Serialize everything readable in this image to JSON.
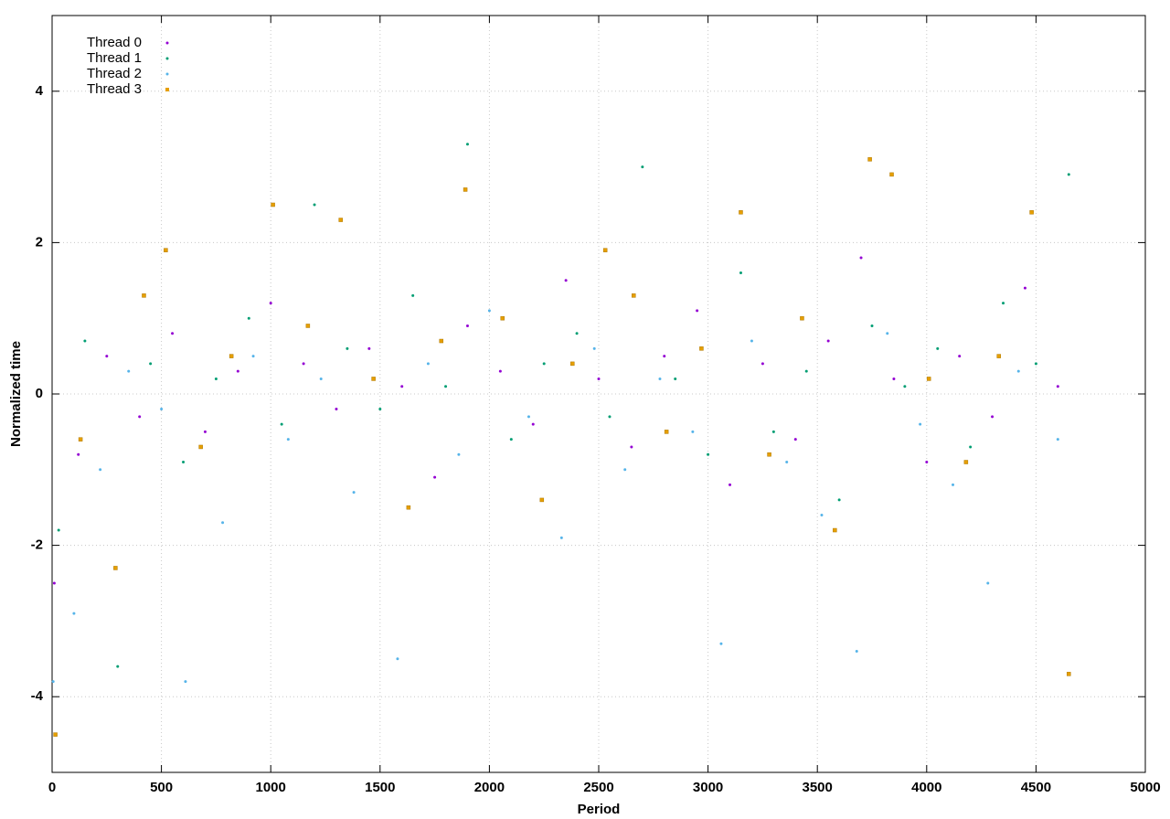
{
  "chart_data": {
    "type": "scatter",
    "xlabel": "Period",
    "ylabel": "Normalized time",
    "xlim": [
      0,
      5000
    ],
    "ylim": [
      -5,
      5
    ],
    "xticks": [
      0,
      500,
      1000,
      1500,
      2000,
      2500,
      3000,
      3500,
      4000,
      4500,
      5000
    ],
    "yticks": [
      -4,
      -2,
      0,
      2,
      4
    ],
    "grid": true,
    "legend": "top-left",
    "series": [
      {
        "name": "Thread 0",
        "color": "#9400d3",
        "marker": "dot",
        "x": [
          10,
          120,
          250,
          400,
          550,
          700,
          850,
          1000,
          1150,
          1300,
          1450,
          1600,
          1750,
          1900,
          2050,
          2200,
          2350,
          2500,
          2650,
          2800,
          2950,
          3100,
          3250,
          3400,
          3550,
          3700,
          3850,
          4000,
          4150,
          4300,
          4450,
          4600
        ],
        "values": [
          -2.5,
          -0.8,
          0.5,
          -0.3,
          0.8,
          -0.5,
          0.3,
          1.2,
          0.4,
          -0.2,
          0.6,
          0.1,
          -1.1,
          0.9,
          0.3,
          -0.4,
          1.5,
          0.2,
          -0.7,
          0.5,
          1.1,
          -1.2,
          0.4,
          -0.6,
          0.7,
          1.8,
          0.2,
          -0.9,
          0.5,
          -0.3,
          1.4,
          0.1
        ]
      },
      {
        "name": "Thread 1",
        "color": "#009e73",
        "marker": "dot",
        "x": [
          30,
          150,
          300,
          450,
          600,
          750,
          900,
          1050,
          1200,
          1350,
          1500,
          1650,
          1800,
          1900,
          2100,
          2250,
          2400,
          2550,
          2700,
          2850,
          3000,
          3150,
          3300,
          3450,
          3600,
          3750,
          3900,
          4050,
          4200,
          4350,
          4500,
          4650
        ],
        "values": [
          -1.8,
          0.7,
          -3.6,
          0.4,
          -0.9,
          0.2,
          1.0,
          -0.4,
          2.5,
          0.6,
          -0.2,
          1.3,
          0.1,
          3.3,
          -0.6,
          0.4,
          0.8,
          -0.3,
          3.0,
          0.2,
          -0.8,
          1.6,
          -0.5,
          0.3,
          -1.4,
          0.9,
          0.1,
          0.6,
          -0.7,
          1.2,
          0.4,
          2.9
        ]
      },
      {
        "name": "Thread 2",
        "color": "#56b4e9",
        "marker": "dot",
        "x": [
          5,
          100,
          220,
          350,
          500,
          610,
          780,
          920,
          1080,
          1230,
          1380,
          1580,
          1720,
          1860,
          2000,
          2180,
          2330,
          2480,
          2620,
          2780,
          2930,
          3060,
          3200,
          3360,
          3520,
          3680,
          3820,
          3970,
          4120,
          4280,
          4420,
          4600
        ],
        "values": [
          -3.8,
          -2.9,
          -1.0,
          0.3,
          -0.2,
          -3.8,
          -1.7,
          0.5,
          -0.6,
          0.2,
          -1.3,
          -3.5,
          0.4,
          -0.8,
          1.1,
          -0.3,
          -1.9,
          0.6,
          -1.0,
          0.2,
          -0.5,
          -3.3,
          0.7,
          -0.9,
          -1.6,
          -3.4,
          0.8,
          -0.4,
          -1.2,
          -2.5,
          0.3,
          -0.6
        ]
      },
      {
        "name": "Thread 3",
        "color": "#e69f00",
        "marker": "square",
        "x": [
          15,
          130,
          290,
          420,
          520,
          680,
          820,
          1010,
          1170,
          1320,
          1470,
          1630,
          1780,
          1890,
          2060,
          2240,
          2380,
          2530,
          2660,
          2810,
          2970,
          3150,
          3280,
          3430,
          3580,
          3740,
          3840,
          4010,
          4180,
          4330,
          4480,
          4650
        ],
        "values": [
          -4.5,
          -0.6,
          -2.3,
          1.3,
          1.9,
          -0.7,
          0.5,
          2.5,
          0.9,
          2.3,
          0.2,
          -1.5,
          0.7,
          2.7,
          1.0,
          -1.4,
          0.4,
          1.9,
          1.3,
          -0.5,
          0.6,
          2.4,
          -0.8,
          1.0,
          -1.8,
          3.1,
          2.9,
          0.2,
          -0.9,
          0.5,
          2.4,
          -3.7
        ]
      }
    ]
  }
}
